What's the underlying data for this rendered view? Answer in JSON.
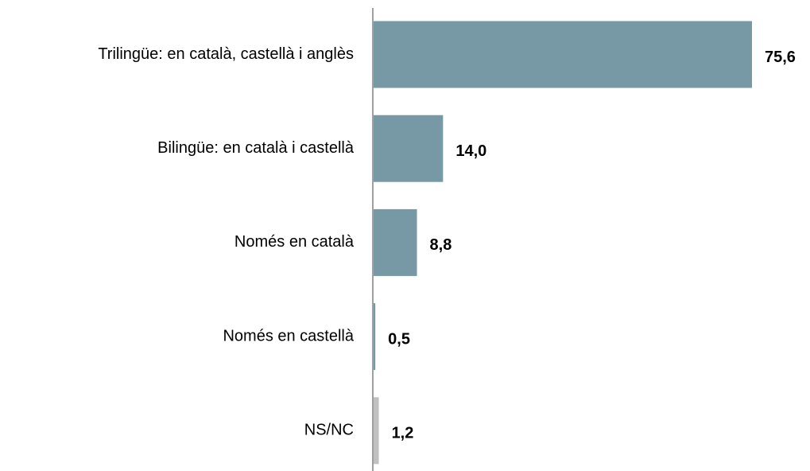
{
  "chart_data": {
    "type": "barh",
    "categories": [
      "Trilingüe: en català, castellà i anglès",
      "Bilingüe: en català i castellà",
      "Només en català",
      "Només en castellà",
      "NS/NC"
    ],
    "values": [
      75.6,
      14.0,
      8.8,
      0.5,
      1.2
    ],
    "value_labels": [
      "75,6",
      "14,0",
      "8,8",
      "0,5",
      "1,2"
    ],
    "colors": [
      "#7799a5",
      "#7799a5",
      "#7799a5",
      "#7799a5",
      "#c0c0c0"
    ]
  }
}
